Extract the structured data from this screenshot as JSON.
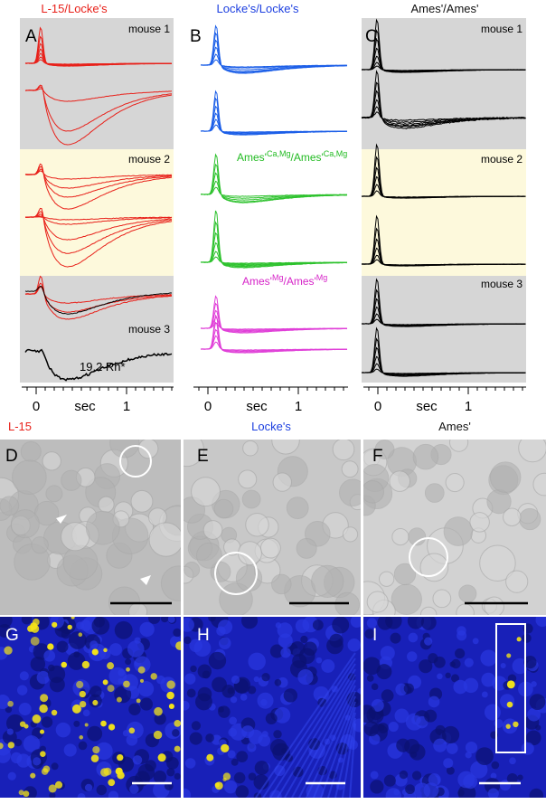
{
  "columns": [
    {
      "title": "L-15/Locke's",
      "panel": "A"
    },
    {
      "title": "Locke's/Locke's",
      "panel": "B"
    },
    {
      "title": "Ames'/Ames'",
      "panel": "C"
    }
  ],
  "panel_a": {
    "mouse_labels": [
      "mouse 1",
      "mouse 2",
      "mouse 3"
    ],
    "annotation": "19.2 Rh*"
  },
  "panel_b": {
    "condition_labels": [
      [
        "Ames'",
        "Ca,Mg",
        "/Ames'",
        "Ca,Mg"
      ],
      [
        "Ames'",
        "Mg",
        "/Ames'",
        "Mg"
      ]
    ]
  },
  "panel_c": {
    "mouse_labels": [
      "mouse 1",
      "mouse 2",
      "mouse 3"
    ]
  },
  "time_axis": {
    "tick_labels": [
      "0",
      "1"
    ],
    "label": "sec"
  },
  "images": {
    "titles": [
      "L-15",
      "Locke's",
      "Ames'"
    ],
    "panels": [
      "D",
      "E",
      "F",
      "G",
      "H",
      "I"
    ]
  }
}
